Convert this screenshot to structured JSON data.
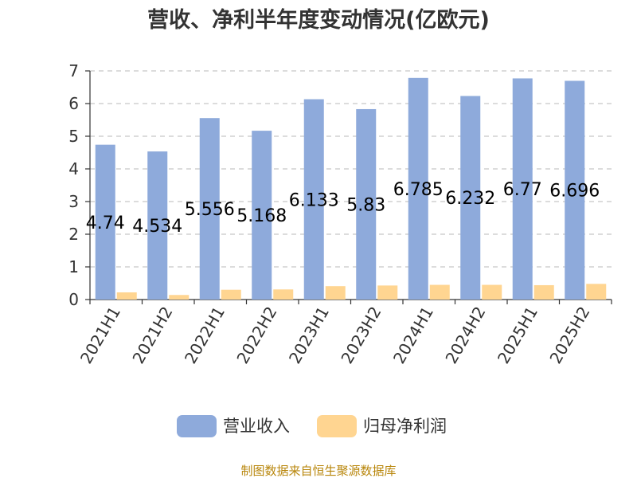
{
  "chart_data": {
    "type": "bar",
    "title": "营收、净利半年度变动情况(亿欧元)",
    "categories": [
      "2021H1",
      "2021H2",
      "2022H1",
      "2022H2",
      "2023H1",
      "2023H2",
      "2024H1",
      "2024H2",
      "2025H1",
      "2025H2"
    ],
    "series": [
      {
        "name": "营业收入",
        "color": "#8eaadb",
        "values": [
          4.74,
          4.534,
          5.556,
          5.168,
          6.133,
          5.83,
          6.785,
          6.232,
          6.77,
          6.696
        ],
        "labels": [
          "4.74",
          "4.534",
          "5.556",
          "5.168",
          "6.133",
          "5.83",
          "6.785",
          "6.232",
          "6.77",
          "6.696"
        ]
      },
      {
        "name": "归母净利润",
        "color": "#ffd591",
        "values": [
          0.22,
          0.14,
          0.3,
          0.31,
          0.41,
          0.43,
          0.45,
          0.45,
          0.44,
          0.48
        ]
      }
    ],
    "ylim": [
      0,
      7
    ],
    "yticks": [
      "0",
      "1",
      "2",
      "3",
      "4",
      "5",
      "6",
      "7"
    ],
    "grid": true,
    "legend_position": "bottom"
  },
  "source_text": "制图数据来自恒生聚源数据库"
}
